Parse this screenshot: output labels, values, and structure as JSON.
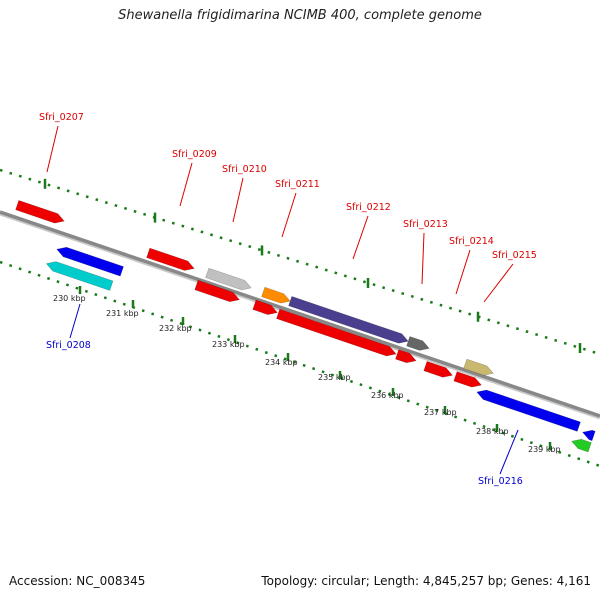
{
  "title": "Shewanella frigidimarina NCIMB 400, complete genome",
  "footer": {
    "accession": "Accession: NC_008345",
    "topology": "Topology: circular; Length: 4,845,257 bp; Genes: 4,161"
  },
  "colors": {
    "forward_label": "#dd0000",
    "reverse_label": "#0000cc",
    "tick": "#1a7a1a",
    "backbone": "#888888"
  },
  "ticks": [
    "230 kbp",
    "231 kbp",
    "232 kbp",
    "233 kbp",
    "234 kbp",
    "235 kbp",
    "236 kbp",
    "237 kbp",
    "238 kbp",
    "239 kbp"
  ],
  "labeled_genes": [
    {
      "name": "Sfri_0207",
      "strand": "forward"
    },
    {
      "name": "Sfri_0208",
      "strand": "reverse"
    },
    {
      "name": "Sfri_0209",
      "strand": "forward"
    },
    {
      "name": "Sfri_0210",
      "strand": "forward"
    },
    {
      "name": "Sfri_0211",
      "strand": "forward"
    },
    {
      "name": "Sfri_0212",
      "strand": "forward"
    },
    {
      "name": "Sfri_0213",
      "strand": "forward"
    },
    {
      "name": "Sfri_0214",
      "strand": "forward"
    },
    {
      "name": "Sfri_0215",
      "strand": "forward"
    },
    {
      "name": "Sfri_0216",
      "strand": "reverse"
    }
  ],
  "features": [
    {
      "strand": "forward",
      "color": "#ee0000"
    },
    {
      "strand": "reverse",
      "color": "#0000ee"
    },
    {
      "strand": "reverse",
      "color": "#00cccc"
    },
    {
      "strand": "forward",
      "color": "#ee0000"
    },
    {
      "strand": "forward",
      "color": "#c0c0c0"
    },
    {
      "strand": "forward",
      "color": "#ee0000"
    },
    {
      "strand": "forward",
      "color": "#ee0000"
    },
    {
      "strand": "forward",
      "color": "#ff8c00"
    },
    {
      "strand": "forward",
      "color": "#4a3f8f"
    },
    {
      "strand": "forward",
      "color": "#ee0000"
    },
    {
      "strand": "forward",
      "color": "#666666"
    },
    {
      "strand": "forward",
      "color": "#ee0000"
    },
    {
      "strand": "forward",
      "color": "#ee0000"
    },
    {
      "strand": "forward",
      "color": "#ee0000"
    },
    {
      "strand": "forward",
      "color": "#c8b870"
    },
    {
      "strand": "forward",
      "color": "#ee0000"
    },
    {
      "strand": "reverse",
      "color": "#0000ee"
    },
    {
      "strand": "reverse",
      "color": "#0000ee"
    },
    {
      "strand": "reverse",
      "color": "#22cc22"
    }
  ]
}
